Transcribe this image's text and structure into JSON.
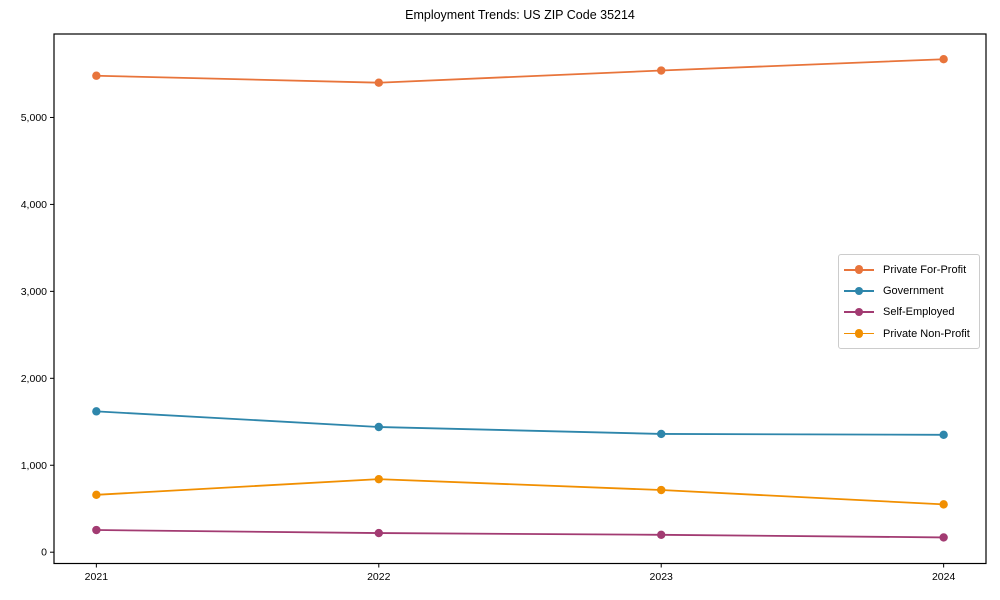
{
  "chart_data": {
    "type": "line",
    "title": "Employment Trends: US ZIP Code 35214",
    "xlabel": "",
    "ylabel": "",
    "x": [
      "2021",
      "2022",
      "2023",
      "2024"
    ],
    "series": [
      {
        "name": "Private For-Profit",
        "color": "#E8743B",
        "values": [
          5480,
          5400,
          5540,
          5670
        ]
      },
      {
        "name": "Government",
        "color": "#2E86AB",
        "values": [
          1620,
          1440,
          1360,
          1350
        ]
      },
      {
        "name": "Self-Employed",
        "color": "#A23B72",
        "values": [
          255,
          220,
          200,
          170
        ]
      },
      {
        "name": "Private Non-Profit",
        "color": "#F18F01",
        "values": [
          660,
          840,
          715,
          550
        ]
      }
    ],
    "yticks": [
      0,
      1000,
      2000,
      3000,
      4000,
      5000
    ],
    "ytick_labels": [
      "0",
      "1,000",
      "2,000",
      "3,000",
      "4,000",
      "5,000"
    ],
    "ylim": [
      -130,
      5960
    ],
    "x_margin_frac": 0.15,
    "grid": false,
    "legend_position": "center-right",
    "axis_color": "#000000",
    "legend_border_color": "#cccccc",
    "background_color": "#ffffff"
  }
}
